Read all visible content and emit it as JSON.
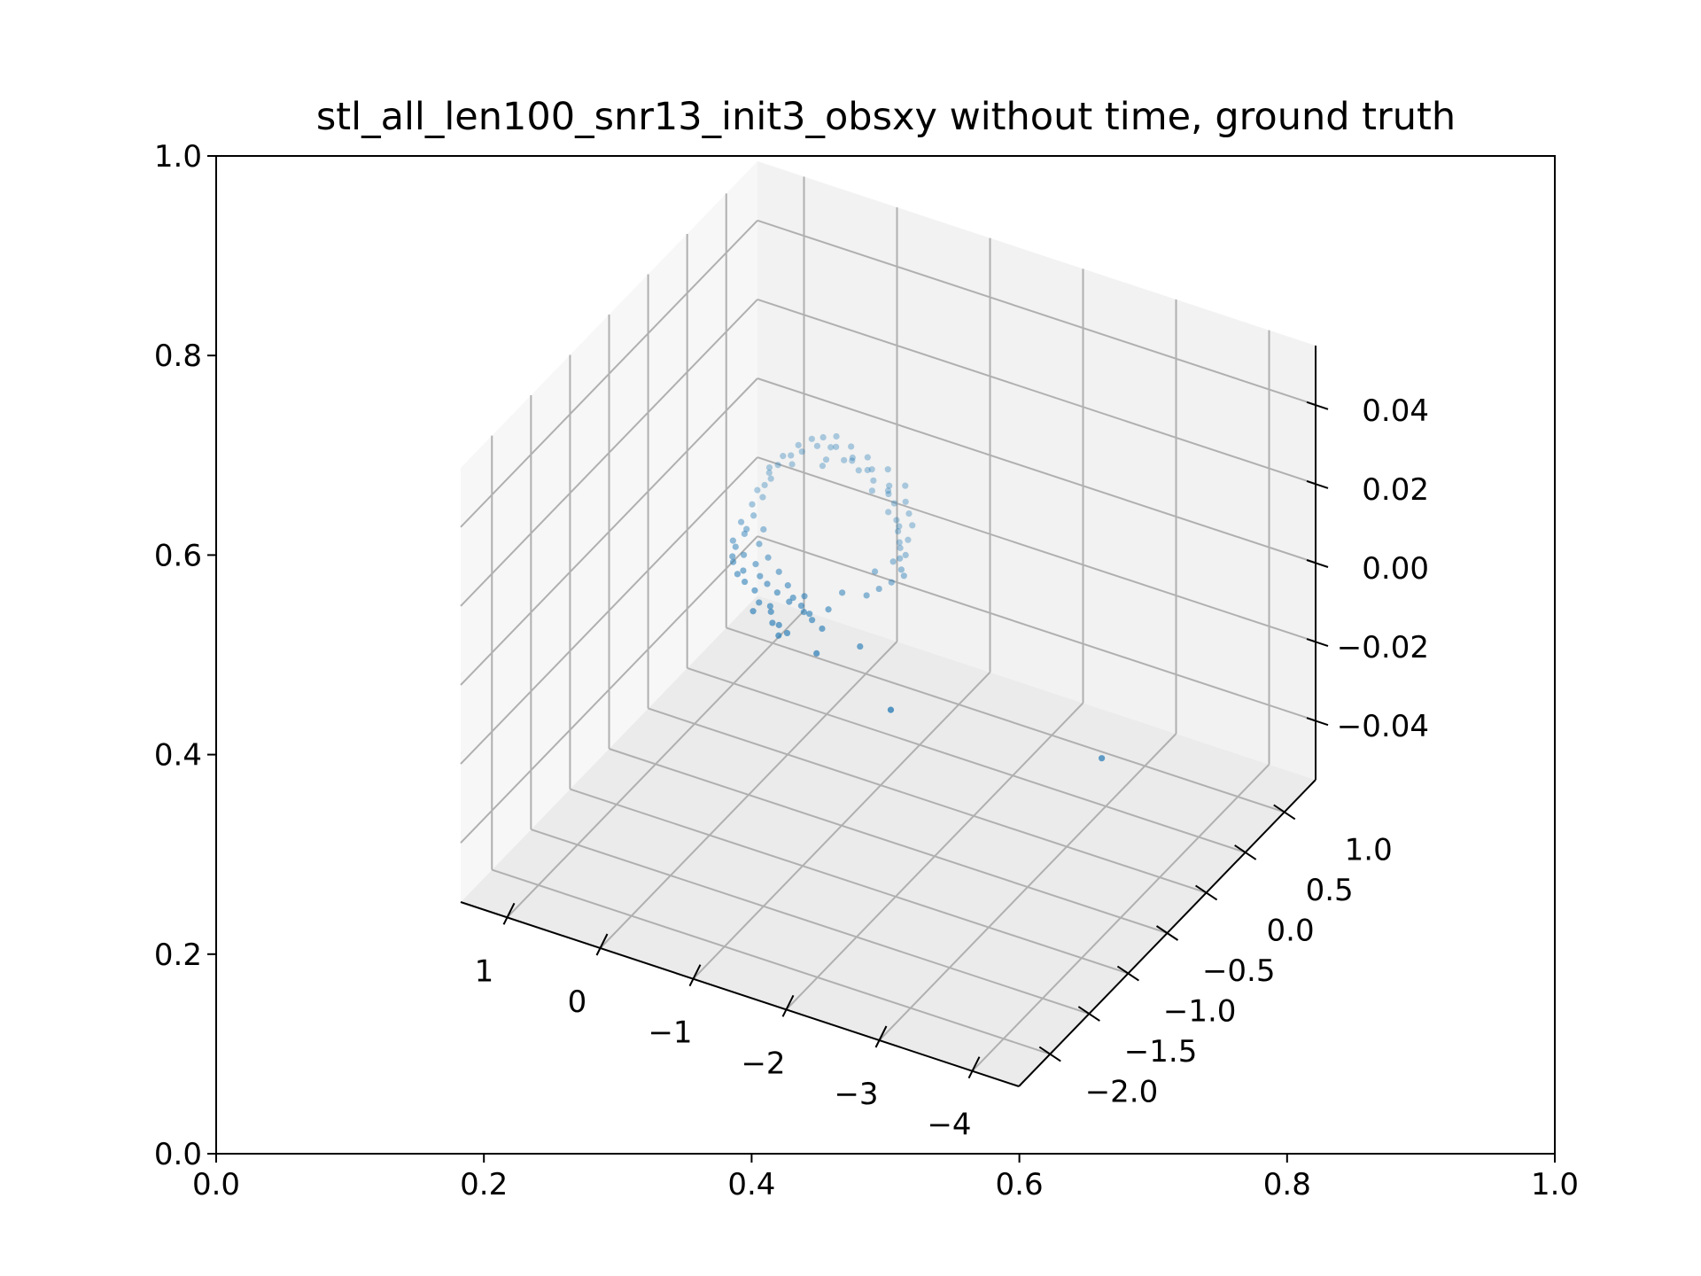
{
  "title": "stl_all_len100_snr13_init3_obsxy without time, ground truth",
  "colors": {
    "points": "#1f77b4",
    "grid": "#b0b0b0",
    "pane_back": "#f2f2f2",
    "pane_left": "#f7f7f7",
    "pane_floor": "#ebebeb"
  },
  "chart_data": [
    {
      "type": "line",
      "role": "2d-axes",
      "title": "",
      "xlabel": "",
      "ylabel": "",
      "xlim": [
        0.0,
        1.0
      ],
      "ylim": [
        0.0,
        1.0
      ],
      "xticks": [
        "0.0",
        "0.2",
        "0.4",
        "0.6",
        "0.8",
        "1.0"
      ],
      "yticks": [
        "0.0",
        "0.2",
        "0.4",
        "0.6",
        "0.8",
        "1.0"
      ],
      "series": []
    },
    {
      "type": "scatter",
      "role": "3d-axes",
      "title": "stl_all_len100_snr13_init3_obsxy without time, ground truth",
      "xlabel": "",
      "ylabel": "",
      "zlabel": "",
      "xlim": [
        -4.5,
        1.5
      ],
      "ylim": [
        -2.4,
        1.4
      ],
      "zlim": [
        -0.055,
        0.055
      ],
      "xticks": [
        "−4",
        "−3",
        "−2",
        "−1",
        "0",
        "1"
      ],
      "yticks": [
        "−2.0",
        "−1.5",
        "−1.0",
        "−0.5",
        "0.0",
        "0.5",
        "1.0"
      ],
      "zticks": [
        "−0.04",
        "−0.02",
        "0.00",
        "0.02",
        "0.04"
      ],
      "grid": true,
      "x": [
        -4.3,
        -2.2,
        -1.45,
        -1.15,
        -1.0,
        -0.85,
        -0.75,
        -0.62,
        -0.52,
        -0.45,
        -0.35,
        -0.28,
        -0.2,
        -0.08,
        0.05,
        0.12,
        0.22,
        0.3,
        0.38,
        -0.7,
        -0.55,
        -0.4,
        -0.3,
        -0.15,
        0.0,
        0.1,
        0.25,
        0.35,
        0.42,
        -0.9,
        -0.78,
        -0.6,
        0.5,
        0.55,
        0.62,
        0.66,
        0.68,
        0.64,
        0.58,
        0.5,
        0.4,
        0.32,
        0.2,
        0.1,
        -0.02,
        -0.15,
        -0.28,
        -0.42,
        -0.55,
        -0.68,
        -0.8,
        -0.92,
        -1.0,
        -1.1,
        -1.18,
        -1.2,
        -1.15,
        -1.1,
        -1.25,
        -1.05,
        -0.98,
        0.45,
        0.52,
        0.6,
        0.65,
        0.56,
        0.48,
        0.3,
        0.15,
        -0.05,
        -0.25,
        -0.45,
        -0.6,
        -0.75,
        -0.85,
        -1.0,
        -1.08,
        0.4,
        0.26,
        0.18,
        0.0,
        -0.2,
        -0.38,
        -0.52,
        -0.65,
        -0.72,
        -0.88,
        0.6,
        0.7,
        0.62,
        0.54,
        0.36,
        0.28,
        0.08,
        -0.12,
        -0.32,
        -0.48,
        -0.62,
        -0.82,
        -0.95
      ],
      "y": [
        -1.1,
        -1.3,
        -0.8,
        -1.0,
        -0.75,
        -0.7,
        -0.9,
        -0.85,
        -0.6,
        -0.75,
        -0.55,
        -0.7,
        -0.5,
        -0.45,
        -0.35,
        -0.5,
        -0.3,
        -0.35,
        -0.1,
        -0.95,
        -0.85,
        -0.7,
        -0.8,
        -0.6,
        -0.55,
        -0.45,
        -0.4,
        -0.25,
        -0.2,
        -0.55,
        -0.65,
        -0.5,
        0.0,
        0.2,
        0.35,
        0.55,
        0.75,
        0.9,
        1.0,
        1.05,
        1.1,
        1.0,
        1.05,
        0.95,
        1.0,
        0.9,
        0.95,
        0.8,
        0.85,
        0.7,
        0.6,
        0.5,
        0.35,
        0.2,
        0.05,
        -0.1,
        -0.2,
        -0.3,
        0.0,
        0.1,
        -0.05,
        0.1,
        0.3,
        0.5,
        0.65,
        0.85,
        0.95,
        0.85,
        0.9,
        0.85,
        0.8,
        0.75,
        0.65,
        0.5,
        0.4,
        0.25,
        0.15,
        -0.05,
        0.0,
        -0.15,
        -0.25,
        -0.35,
        -0.45,
        -0.55,
        -0.6,
        -0.65,
        -0.35,
        0.42,
        0.6,
        0.78,
        0.7,
        0.98,
        0.78,
        0.92,
        0.88,
        0.7,
        0.72,
        0.55,
        0.45,
        0.3
      ],
      "z": [
        0.0,
        0.0,
        0.0,
        0.0,
        0.0,
        0.0,
        0.0,
        0.0,
        0.0,
        0.0,
        0.0,
        0.0,
        0.0,
        0.0,
        0.0,
        0.0,
        0.0,
        0.0,
        0.0,
        0.0,
        0.0,
        0.0,
        0.0,
        0.0,
        0.0,
        0.0,
        0.0,
        0.0,
        0.0,
        0.0,
        0.0,
        0.0,
        0.0,
        0.0,
        0.0,
        0.0,
        0.0,
        0.0,
        0.0,
        0.0,
        0.0,
        0.0,
        0.0,
        0.0,
        0.0,
        0.0,
        0.0,
        0.0,
        0.0,
        0.0,
        0.0,
        0.0,
        0.0,
        0.0,
        0.0,
        0.0,
        0.0,
        0.0,
        0.0,
        0.0,
        0.0,
        0.0,
        0.0,
        0.0,
        0.0,
        0.0,
        0.0,
        0.0,
        0.0,
        0.0,
        0.0,
        0.0,
        0.0,
        0.0,
        0.0,
        0.0,
        0.0,
        0.0,
        0.0,
        0.0,
        0.0,
        0.0,
        0.0,
        0.0,
        0.0,
        0.0,
        0.0,
        0.0,
        0.0,
        0.0,
        0.0,
        0.0,
        0.0,
        0.0,
        0.0,
        0.0,
        0.0,
        0.0,
        0.0,
        0.0
      ]
    }
  ]
}
